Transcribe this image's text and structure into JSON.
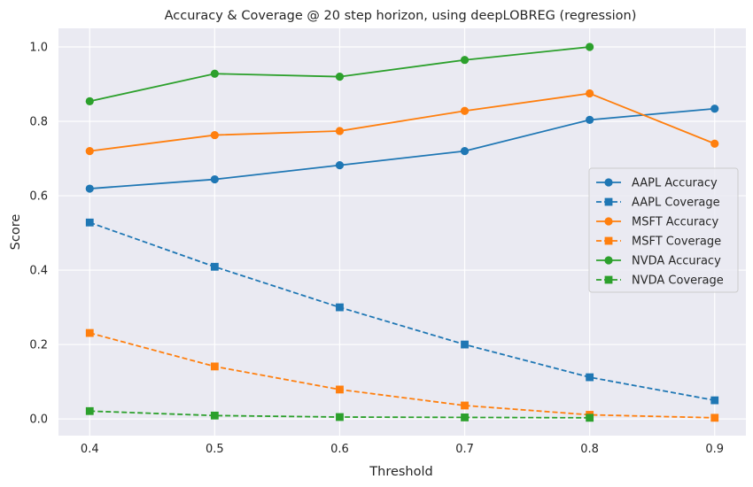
{
  "chart_data": {
    "type": "line",
    "title": "Accuracy & Coverage @ 20 step horizon, using deepLOBREG (regression)",
    "xlabel": "Threshold",
    "ylabel": "Score",
    "x": [
      0.4,
      0.5,
      0.6,
      0.7,
      0.8,
      0.9
    ],
    "x_ticks": [
      "0.4",
      "0.5",
      "0.6",
      "0.7",
      "0.8",
      "0.9"
    ],
    "y_ticks": [
      "0.0",
      "0.2",
      "0.4",
      "0.6",
      "0.8",
      "1.0"
    ],
    "xlim": [
      0.375,
      0.925
    ],
    "ylim": [
      -0.045,
      1.05
    ],
    "grid": true,
    "legend_position": "center-right",
    "series": [
      {
        "name": "AAPL Accuracy",
        "color": "#1f77b4",
        "marker": "circle",
        "dash": false,
        "values": [
          0.619,
          0.644,
          0.682,
          0.72,
          0.804,
          0.834
        ]
      },
      {
        "name": "AAPL Coverage",
        "color": "#1f77b4",
        "marker": "square",
        "dash": true,
        "values": [
          0.528,
          0.409,
          0.3,
          0.2,
          0.112,
          0.05
        ]
      },
      {
        "name": "MSFT Accuracy",
        "color": "#ff7f0e",
        "marker": "circle",
        "dash": false,
        "values": [
          0.72,
          0.763,
          0.774,
          0.828,
          0.875,
          0.74
        ]
      },
      {
        "name": "MSFT Coverage",
        "color": "#ff7f0e",
        "marker": "square",
        "dash": true,
        "values": [
          0.231,
          0.141,
          0.079,
          0.036,
          0.011,
          0.003
        ]
      },
      {
        "name": "NVDA Accuracy",
        "color": "#2ca02c",
        "marker": "circle",
        "dash": false,
        "values": [
          0.854,
          0.928,
          0.92,
          0.965,
          1.0,
          null
        ]
      },
      {
        "name": "NVDA Coverage",
        "color": "#2ca02c",
        "marker": "square",
        "dash": true,
        "values": [
          0.021,
          0.009,
          0.005,
          0.004,
          0.003,
          null
        ]
      }
    ]
  }
}
